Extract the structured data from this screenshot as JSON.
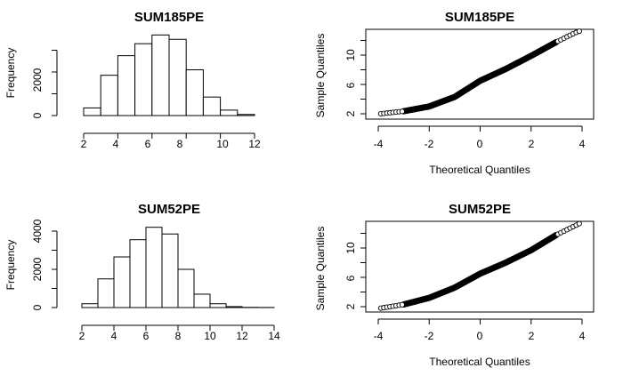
{
  "chart_data": [
    {
      "type": "histogram",
      "title": "SUM185PE",
      "xlabel": "",
      "ylabel": "Frequency",
      "xlim": [
        1,
        13
      ],
      "ylim": [
        0,
        3700
      ],
      "x_ticks": [
        "2",
        "4",
        "6",
        "8",
        "10",
        "12"
      ],
      "y_ticks": [
        "0",
        "2000"
      ],
      "bins": [
        {
          "from": 2,
          "to": 3,
          "count": 350
        },
        {
          "from": 3,
          "to": 4,
          "count": 1850
        },
        {
          "from": 4,
          "to": 5,
          "count": 2750
        },
        {
          "from": 5,
          "to": 6,
          "count": 3300
        },
        {
          "from": 6,
          "to": 7,
          "count": 3700
        },
        {
          "from": 7,
          "to": 8,
          "count": 3500
        },
        {
          "from": 8,
          "to": 9,
          "count": 2100
        },
        {
          "from": 9,
          "to": 10,
          "count": 850
        },
        {
          "from": 10,
          "to": 11,
          "count": 250
        },
        {
          "from": 11,
          "to": 12,
          "count": 50
        }
      ]
    },
    {
      "type": "scatter",
      "subtype": "normal-qq",
      "title": "SUM185PE",
      "xlabel": "Theoretical Quantiles",
      "ylabel": "Sample Quantiles",
      "xlim": [
        -4.3,
        4.3
      ],
      "ylim": [
        1.5,
        14
      ],
      "x_ticks": [
        "-4",
        "-2",
        "0",
        "2",
        "4"
      ],
      "y_ticks": [
        "2",
        "6",
        "10"
      ],
      "quantile_curve": [
        {
          "x": -3.9,
          "y": 2.0
        },
        {
          "x": -3.0,
          "y": 2.35
        },
        {
          "x": -2.0,
          "y": 3.0
        },
        {
          "x": -1.0,
          "y": 4.3
        },
        {
          "x": 0.0,
          "y": 6.5
        },
        {
          "x": 1.0,
          "y": 8.1
        },
        {
          "x": 2.0,
          "y": 9.9
        },
        {
          "x": 3.0,
          "y": 11.8
        },
        {
          "x": 3.7,
          "y": 13.0
        },
        {
          "x": 4.0,
          "y": 13.4
        }
      ]
    },
    {
      "type": "histogram",
      "title": "SUM52PE",
      "xlabel": "",
      "ylabel": "Frequency",
      "xlim": [
        1,
        14
      ],
      "ylim": [
        0,
        4200
      ],
      "x_ticks": [
        "2",
        "4",
        "6",
        "8",
        "10",
        "12",
        "14"
      ],
      "y_ticks": [
        "0",
        "2000",
        "4000"
      ],
      "bins": [
        {
          "from": 2,
          "to": 3,
          "count": 200
        },
        {
          "from": 3,
          "to": 4,
          "count": 1500
        },
        {
          "from": 4,
          "to": 5,
          "count": 2650
        },
        {
          "from": 5,
          "to": 6,
          "count": 3550
        },
        {
          "from": 6,
          "to": 7,
          "count": 4200
        },
        {
          "from": 7,
          "to": 8,
          "count": 3850
        },
        {
          "from": 8,
          "to": 9,
          "count": 2000
        },
        {
          "from": 9,
          "to": 10,
          "count": 700
        },
        {
          "from": 10,
          "to": 11,
          "count": 200
        },
        {
          "from": 11,
          "to": 12,
          "count": 50
        },
        {
          "from": 12,
          "to": 13,
          "count": 10
        },
        {
          "from": 13,
          "to": 14,
          "count": 5
        }
      ]
    },
    {
      "type": "scatter",
      "subtype": "normal-qq",
      "title": "SUM52PE",
      "xlabel": "Theoretical Quantiles",
      "ylabel": "Sample Quantiles",
      "xlim": [
        -4.3,
        4.3
      ],
      "ylim": [
        1.5,
        14
      ],
      "x_ticks": [
        "-4",
        "-2",
        "0",
        "2",
        "4"
      ],
      "y_ticks": [
        "2",
        "6",
        "10"
      ],
      "quantile_curve": [
        {
          "x": -3.9,
          "y": 1.8
        },
        {
          "x": -3.0,
          "y": 2.3
        },
        {
          "x": -2.0,
          "y": 3.2
        },
        {
          "x": -1.0,
          "y": 4.6
        },
        {
          "x": 0.0,
          "y": 6.5
        },
        {
          "x": 1.0,
          "y": 8.0
        },
        {
          "x": 2.0,
          "y": 9.7
        },
        {
          "x": 3.0,
          "y": 11.8
        },
        {
          "x": 3.7,
          "y": 13.0
        },
        {
          "x": 4.0,
          "y": 13.5
        }
      ]
    }
  ]
}
